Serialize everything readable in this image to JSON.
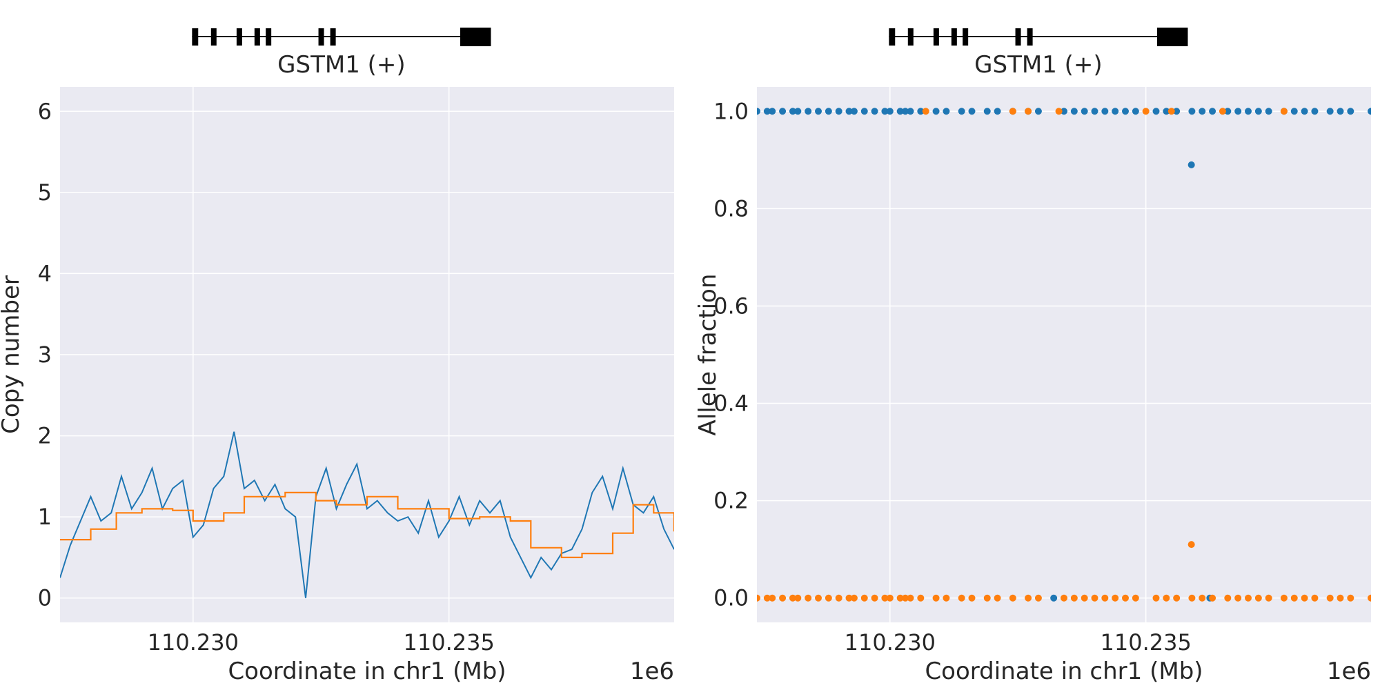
{
  "chart_data": [
    {
      "type": "line",
      "gene_track": {
        "label": "GSTM1 (+)",
        "strand": "+",
        "start": 110.22998,
        "end": 110.23582,
        "exons": [
          [
            110.22998,
            110.2301
          ],
          [
            110.23035,
            110.23045
          ],
          [
            110.23085,
            110.23095
          ],
          [
            110.2312,
            110.2313
          ],
          [
            110.23142,
            110.23152
          ],
          [
            110.23245,
            110.23255
          ],
          [
            110.23268,
            110.23278
          ],
          [
            110.23522,
            110.23582
          ]
        ]
      },
      "xlabel": "Coordinate in chr1 (Mb)",
      "x_offset_label": "1e6",
      "ylabel": "Copy number",
      "xlim": [
        110.2274,
        110.2394
      ],
      "ylim": [
        -0.3,
        6.3
      ],
      "xticks": [
        110.23,
        110.235
      ],
      "xtick_labels": [
        "110.230",
        "110.235"
      ],
      "yticks": [
        0,
        1,
        2,
        3,
        4,
        5,
        6
      ],
      "ytick_labels": [
        "0",
        "1",
        "2",
        "3",
        "4",
        "5",
        "6"
      ],
      "grid": true,
      "series": [
        {
          "color": "#1f77b4",
          "x": [
            110.2274,
            110.2276,
            110.2278,
            110.228,
            110.2282,
            110.2284,
            110.2286,
            110.2288,
            110.229,
            110.2292,
            110.2294,
            110.2296,
            110.2298,
            110.23,
            110.2302,
            110.2304,
            110.2306,
            110.2308,
            110.231,
            110.2312,
            110.2314,
            110.2316,
            110.2318,
            110.232,
            110.2322,
            110.2324,
            110.2326,
            110.2328,
            110.233,
            110.2332,
            110.2334,
            110.2336,
            110.2338,
            110.234,
            110.2342,
            110.2344,
            110.2346,
            110.2348,
            110.235,
            110.2352,
            110.2354,
            110.2356,
            110.2358,
            110.236,
            110.2362,
            110.2364,
            110.2366,
            110.2368,
            110.237,
            110.2372,
            110.2374,
            110.2376,
            110.2378,
            110.238,
            110.2382,
            110.2384,
            110.2386,
            110.2388,
            110.239,
            110.2392,
            110.2394
          ],
          "values": [
            0.25,
            0.65,
            0.95,
            1.25,
            0.95,
            1.05,
            1.5,
            1.1,
            1.3,
            1.6,
            1.1,
            1.35,
            1.45,
            0.75,
            0.9,
            1.35,
            1.5,
            2.05,
            1.35,
            1.45,
            1.2,
            1.4,
            1.1,
            1.0,
            0.0,
            1.25,
            1.6,
            1.1,
            1.4,
            1.65,
            1.1,
            1.2,
            1.05,
            0.95,
            1.0,
            0.8,
            1.2,
            0.75,
            0.95,
            1.25,
            0.9,
            1.2,
            1.05,
            1.2,
            0.75,
            0.5,
            0.25,
            0.5,
            0.35,
            0.55,
            0.6,
            0.85,
            1.3,
            1.5,
            1.1,
            1.6,
            1.15,
            1.05,
            1.25,
            0.85,
            0.6
          ]
        },
        {
          "color": "#ff7f0e",
          "x": [
            110.2274,
            110.228,
            110.2285,
            110.229,
            110.2296,
            110.23,
            110.2306,
            110.231,
            110.2318,
            110.2324,
            110.2328,
            110.2334,
            110.234,
            110.235,
            110.2356,
            110.2362,
            110.2366,
            110.2372,
            110.2376,
            110.2382,
            110.2386,
            110.239,
            110.2394
          ],
          "values": [
            0.72,
            0.85,
            1.05,
            1.1,
            1.08,
            0.95,
            1.05,
            1.25,
            1.3,
            1.2,
            1.15,
            1.25,
            1.1,
            0.98,
            1.0,
            0.95,
            0.62,
            0.5,
            0.55,
            0.8,
            1.15,
            1.05,
            0.82
          ]
        }
      ]
    },
    {
      "type": "scatter",
      "gene_track": {
        "label": "GSTM1 (+)",
        "strand": "+",
        "start": 110.22998,
        "end": 110.23582,
        "exons": [
          [
            110.22998,
            110.2301
          ],
          [
            110.23035,
            110.23045
          ],
          [
            110.23085,
            110.23095
          ],
          [
            110.2312,
            110.2313
          ],
          [
            110.23142,
            110.23152
          ],
          [
            110.23245,
            110.23255
          ],
          [
            110.23268,
            110.23278
          ],
          [
            110.23522,
            110.23582
          ]
        ]
      },
      "xlabel": "Coordinate in chr1 (Mb)",
      "x_offset_label": "1e6",
      "ylabel": "Allele fraction",
      "xlim": [
        110.2274,
        110.2394
      ],
      "ylim": [
        -0.05,
        1.05
      ],
      "xticks": [
        110.23,
        110.235
      ],
      "xtick_labels": [
        "110.230",
        "110.235"
      ],
      "yticks": [
        0.0,
        0.2,
        0.4,
        0.6,
        0.8,
        1.0
      ],
      "ytick_labels": [
        "0.0",
        "0.2",
        "0.4",
        "0.6",
        "0.8",
        "1.0"
      ],
      "grid": true,
      "series": [
        {
          "color": "#1f77b4",
          "x": [
            110.2274,
            110.2276,
            110.2277,
            110.2279,
            110.2281,
            110.2282,
            110.2284,
            110.2286,
            110.2288,
            110.229,
            110.2292,
            110.2293,
            110.2295,
            110.2297,
            110.2299,
            110.23,
            110.2302,
            110.2303,
            110.2304,
            110.2306,
            110.2309,
            110.2311,
            110.2314,
            110.2316,
            110.2319,
            110.2321,
            110.2324,
            110.2327,
            110.2329,
            110.2334,
            110.2336,
            110.2338,
            110.234,
            110.2342,
            110.2344,
            110.2346,
            110.2348,
            110.2352,
            110.2354,
            110.2356,
            110.2359,
            110.2361,
            110.2363,
            110.2366,
            110.2368,
            110.237,
            110.2372,
            110.2374,
            110.2377,
            110.2379,
            110.2381,
            110.2383,
            110.2386,
            110.2388,
            110.239,
            110.2394,
            110.23589,
            110.2332,
            110.23625
          ],
          "values": [
            1,
            1,
            1,
            1,
            1,
            1,
            1,
            1,
            1,
            1,
            1,
            1,
            1,
            1,
            1,
            1,
            1,
            1,
            1,
            1,
            1,
            1,
            1,
            1,
            1,
            1,
            1,
            1,
            1,
            1,
            1,
            1,
            1,
            1,
            1,
            1,
            1,
            1,
            1,
            1,
            1,
            1,
            1,
            1,
            1,
            1,
            1,
            1,
            1,
            1,
            1,
            1,
            1,
            1,
            1,
            1,
            0.89,
            0,
            0
          ]
        },
        {
          "color": "#ff7f0e",
          "x": [
            110.2274,
            110.2276,
            110.2277,
            110.2279,
            110.2281,
            110.2282,
            110.2284,
            110.2286,
            110.2288,
            110.229,
            110.2292,
            110.2293,
            110.2295,
            110.2297,
            110.2299,
            110.23,
            110.2302,
            110.2303,
            110.2304,
            110.2306,
            110.2309,
            110.2311,
            110.2314,
            110.2316,
            110.2319,
            110.2321,
            110.2324,
            110.2327,
            110.2329,
            110.2334,
            110.2336,
            110.2338,
            110.234,
            110.2342,
            110.2344,
            110.2346,
            110.2348,
            110.2352,
            110.2354,
            110.2356,
            110.2359,
            110.2361,
            110.2363,
            110.2366,
            110.2368,
            110.237,
            110.2372,
            110.2374,
            110.2377,
            110.2379,
            110.2381,
            110.2383,
            110.2386,
            110.2388,
            110.239,
            110.2394,
            110.23589,
            110.2307,
            110.2324,
            110.2327,
            110.2333,
            110.235,
            110.2355,
            110.2365,
            110.2377
          ],
          "values": [
            0,
            0,
            0,
            0,
            0,
            0,
            0,
            0,
            0,
            0,
            0,
            0,
            0,
            0,
            0,
            0,
            0,
            0,
            0,
            0,
            0,
            0,
            0,
            0,
            0,
            0,
            0,
            0,
            0,
            0,
            0,
            0,
            0,
            0,
            0,
            0,
            0,
            0,
            0,
            0,
            0,
            0,
            0,
            0,
            0,
            0,
            0,
            0,
            0,
            0,
            0,
            0,
            0,
            0,
            0,
            0,
            0.11,
            1,
            1,
            1,
            1,
            1,
            1,
            1,
            1
          ]
        }
      ]
    }
  ]
}
